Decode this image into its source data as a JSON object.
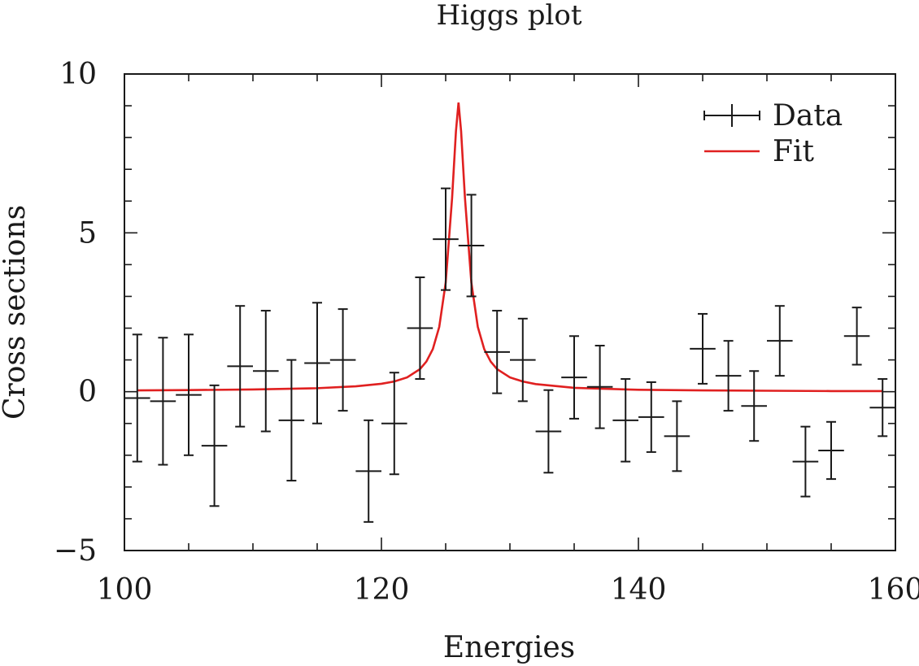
{
  "chart_data": {
    "type": "scatter",
    "title": "Higgs plot",
    "xlabel": "Energies",
    "ylabel": "Cross sections",
    "xlim": [
      100,
      160
    ],
    "ylim": [
      -5,
      10
    ],
    "x_ticks": [
      100,
      120,
      140,
      160
    ],
    "y_ticks": [
      -5,
      0,
      5,
      10
    ],
    "x_tick_labels": [
      "100",
      "120",
      "140",
      "160"
    ],
    "y_tick_labels": [
      "−5",
      "0",
      "5",
      "10"
    ],
    "legend_position": "top-right",
    "series": [
      {
        "name": "Data",
        "kind": "errorbar",
        "color": "#1a1a1a",
        "x_halfwidth": 1,
        "points": [
          {
            "x": 101,
            "y": -0.2,
            "err": 2.0
          },
          {
            "x": 103,
            "y": -0.3,
            "err": 2.0
          },
          {
            "x": 105,
            "y": -0.1,
            "err": 1.9
          },
          {
            "x": 107,
            "y": -1.7,
            "err": 1.9
          },
          {
            "x": 109,
            "y": 0.8,
            "err": 1.9
          },
          {
            "x": 111,
            "y": 0.65,
            "err": 1.9
          },
          {
            "x": 113,
            "y": -0.9,
            "err": 1.9
          },
          {
            "x": 115,
            "y": 0.9,
            "err": 1.9
          },
          {
            "x": 117,
            "y": 1.0,
            "err": 1.6
          },
          {
            "x": 119,
            "y": -2.5,
            "err": 1.6
          },
          {
            "x": 121,
            "y": -1.0,
            "err": 1.6
          },
          {
            "x": 123,
            "y": 2.0,
            "err": 1.6
          },
          {
            "x": 125,
            "y": 4.8,
            "err": 1.6
          },
          {
            "x": 127,
            "y": 4.6,
            "err": 1.6
          },
          {
            "x": 129,
            "y": 1.25,
            "err": 1.3
          },
          {
            "x": 131,
            "y": 1.0,
            "err": 1.3
          },
          {
            "x": 133,
            "y": -1.25,
            "err": 1.3
          },
          {
            "x": 135,
            "y": 0.45,
            "err": 1.3
          },
          {
            "x": 137,
            "y": 0.15,
            "err": 1.3
          },
          {
            "x": 139,
            "y": -0.9,
            "err": 1.3
          },
          {
            "x": 141,
            "y": -0.8,
            "err": 1.1
          },
          {
            "x": 143,
            "y": -1.4,
            "err": 1.1
          },
          {
            "x": 145,
            "y": 1.35,
            "err": 1.1
          },
          {
            "x": 147,
            "y": 0.5,
            "err": 1.1
          },
          {
            "x": 149,
            "y": -0.45,
            "err": 1.1
          },
          {
            "x": 151,
            "y": 1.6,
            "err": 1.1
          },
          {
            "x": 153,
            "y": -2.2,
            "err": 1.1
          },
          {
            "x": 155,
            "y": -1.85,
            "err": 0.9
          },
          {
            "x": 157,
            "y": 1.75,
            "err": 0.9
          },
          {
            "x": 159,
            "y": -0.5,
            "err": 0.9
          }
        ]
      },
      {
        "name": "Fit",
        "kind": "line",
        "color": "#e02020",
        "x": [
          101,
          105,
          110,
          115,
          118,
          120,
          121,
          122,
          123,
          123.5,
          124,
          124.5,
          125,
          125.5,
          125.8,
          126,
          126.2,
          126.5,
          127,
          127.5,
          128,
          128.5,
          129,
          130,
          131,
          132,
          135,
          140,
          145,
          150,
          155,
          159
        ],
        "y": [
          0.04,
          0.05,
          0.07,
          0.11,
          0.17,
          0.25,
          0.32,
          0.45,
          0.71,
          0.95,
          1.34,
          2.04,
          3.43,
          6.1,
          8.2,
          9.1,
          8.2,
          6.1,
          3.43,
          2.04,
          1.34,
          0.95,
          0.71,
          0.45,
          0.32,
          0.24,
          0.12,
          0.06,
          0.04,
          0.03,
          0.02,
          0.02
        ]
      }
    ]
  }
}
